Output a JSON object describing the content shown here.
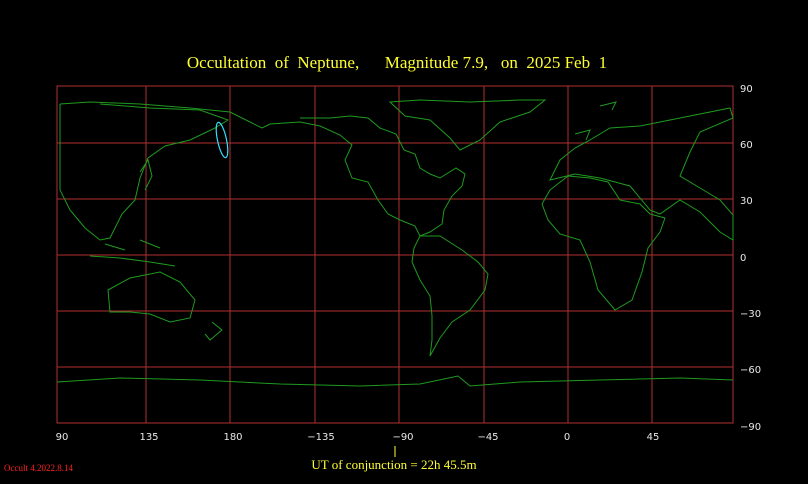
{
  "title": "Occultation  of  Neptune,      Magnitude 7.9,   on  2025 Feb  1",
  "lat_labels": [
    "90",
    "60",
    "30",
    "0",
    "−30",
    "−60",
    "−90"
  ],
  "lon_labels": [
    "90",
    "135",
    "180",
    "−135",
    "−90",
    "−45",
    "0",
    "45"
  ],
  "footer": "UT of conjunction = 22h 45.5m",
  "version": "Occult 4.2022.8.14"
}
